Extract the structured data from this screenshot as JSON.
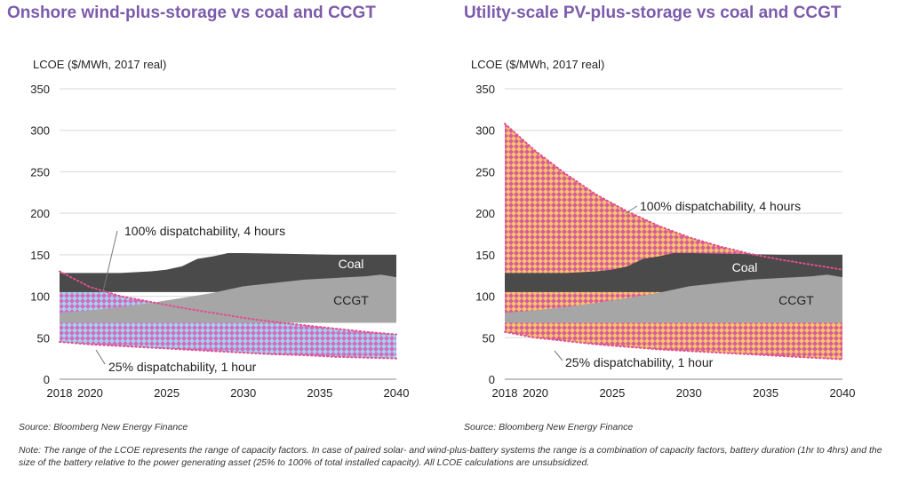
{
  "titles": {
    "left": "Onshore wind-plus-storage vs coal and CCGT",
    "right": "Utility-scale PV-plus-storage vs coal and CCGT"
  },
  "sources": {
    "left": "Source: Bloomberg New Energy Finance",
    "right": "Source: Bloomberg New Energy Finance"
  },
  "note": "Note: The range of the LCOE represents the range of capacity factors. In case of paired solar- and wind-plus-battery systems the range is a combination of capacity factors, battery duration (1hr to 4hrs) and the size of the battery relative to the power generating asset (25% to 100% of total installed capacity). All LCOE calculations are unsubsidized.",
  "colors": {
    "coal": "#4a4a4a",
    "ccgt": "#a6a6a6",
    "wind_fill_a": "#d768c0",
    "wind_fill_b": "#9fd4ec",
    "pv_fill_a": "#d65c9c",
    "pv_fill_b": "#f8c46a",
    "boundary_dots": "#e0508c",
    "grid": "#d9d9d9",
    "title": "#7c5bab"
  },
  "chart_data": [
    {
      "type": "area",
      "title": "Onshore wind-plus-storage vs coal and CCGT",
      "ylabel": "LCOE ($/MWh, 2017 real)",
      "ylim": [
        0,
        350
      ],
      "xlim": [
        2018,
        2040
      ],
      "yticks": [
        0,
        50,
        100,
        150,
        200,
        250,
        300,
        350
      ],
      "xticks": [
        {
          "v": 2018,
          "label": "2018"
        },
        {
          "v": 2020,
          "label": "2020"
        },
        {
          "v": 2025,
          "label": "2025"
        },
        {
          "v": 2030,
          "label": "2030"
        },
        {
          "v": 2035,
          "label": "2035"
        },
        {
          "v": 2040,
          "label": "2040"
        }
      ],
      "grid": true,
      "series": [
        {
          "name": "Coal",
          "x": [
            2018,
            2020,
            2022,
            2024,
            2025,
            2026,
            2027,
            2028,
            2029,
            2030,
            2033,
            2036,
            2039,
            2040
          ],
          "low": [
            105,
            105,
            105,
            105,
            105,
            105,
            105,
            105,
            105,
            105,
            105,
            105,
            105,
            105
          ],
          "high": [
            128,
            128,
            128,
            130,
            132,
            136,
            145,
            148,
            152,
            152,
            151,
            150,
            150,
            150
          ]
        },
        {
          "name": "CCGT",
          "x": [
            2018,
            2020,
            2022,
            2024,
            2026,
            2028,
            2030,
            2032,
            2034,
            2036,
            2038,
            2039,
            2040
          ],
          "low": [
            68,
            68,
            68,
            68,
            68,
            68,
            68,
            68,
            68,
            68,
            68,
            68,
            68
          ],
          "high": [
            80,
            83,
            87,
            92,
            98,
            104,
            112,
            116,
            120,
            122,
            124,
            126,
            123
          ]
        },
        {
          "name": "100% dispatchability, 4 hours",
          "x": [
            2018,
            2020,
            2022,
            2024,
            2026,
            2028,
            2030,
            2032,
            2034,
            2036,
            2038,
            2040
          ],
          "values": [
            130,
            111,
            100,
            93,
            86,
            80,
            74,
            69,
            65,
            61,
            57,
            54
          ]
        },
        {
          "name": "25% dispatchability, 1 hour",
          "x": [
            2018,
            2020,
            2022,
            2024,
            2026,
            2028,
            2030,
            2032,
            2034,
            2036,
            2038,
            2040
          ],
          "values": [
            45,
            42,
            40,
            38,
            36,
            34,
            32,
            30,
            29,
            27,
            26,
            25
          ]
        }
      ],
      "annotations": [
        {
          "text": "Coal",
          "series": "Coal"
        },
        {
          "text": "CCGT",
          "series": "CCGT"
        },
        {
          "text": "100% dispatchability, 4 hours",
          "series": "100% dispatchability, 4 hours"
        },
        {
          "text": "25% dispatchability, 1 hour",
          "series": "25% dispatchability, 1 hour"
        }
      ]
    },
    {
      "type": "area",
      "title": "Utility-scale PV-plus-storage vs coal and CCGT",
      "ylabel": "LCOE ($/MWh, 2017 real)",
      "ylim": [
        0,
        350
      ],
      "xlim": [
        2018,
        2040
      ],
      "yticks": [
        0,
        50,
        100,
        150,
        200,
        250,
        300,
        350
      ],
      "xticks": [
        {
          "v": 2018,
          "label": "2018"
        },
        {
          "v": 2020,
          "label": "2020"
        },
        {
          "v": 2025,
          "label": "2025"
        },
        {
          "v": 2030,
          "label": "2030"
        },
        {
          "v": 2035,
          "label": "2035"
        },
        {
          "v": 2040,
          "label": "2040"
        }
      ],
      "grid": true,
      "series": [
        {
          "name": "Coal",
          "x": [
            2018,
            2020,
            2022,
            2024,
            2025,
            2026,
            2027,
            2028,
            2029,
            2030,
            2033,
            2036,
            2039,
            2040
          ],
          "low": [
            105,
            105,
            105,
            105,
            105,
            105,
            105,
            105,
            105,
            105,
            105,
            105,
            105,
            105
          ],
          "high": [
            128,
            128,
            128,
            130,
            132,
            136,
            145,
            148,
            152,
            152,
            151,
            150,
            150,
            150
          ]
        },
        {
          "name": "CCGT",
          "x": [
            2018,
            2020,
            2022,
            2024,
            2026,
            2028,
            2030,
            2032,
            2034,
            2036,
            2038,
            2039,
            2040
          ],
          "low": [
            68,
            68,
            68,
            68,
            68,
            68,
            68,
            68,
            68,
            68,
            68,
            68,
            68
          ],
          "high": [
            80,
            83,
            87,
            92,
            98,
            104,
            112,
            116,
            120,
            122,
            124,
            126,
            123
          ]
        },
        {
          "name": "100% dispatchability, 4 hours",
          "x": [
            2018,
            2020,
            2022,
            2024,
            2026,
            2028,
            2030,
            2032,
            2034,
            2036,
            2038,
            2040
          ],
          "values": [
            308,
            275,
            247,
            222,
            202,
            185,
            171,
            160,
            151,
            144,
            138,
            132
          ]
        },
        {
          "name": "25% dispatchability, 1 hour",
          "x": [
            2018,
            2020,
            2022,
            2024,
            2026,
            2028,
            2030,
            2032,
            2034,
            2036,
            2038,
            2040
          ],
          "values": [
            57,
            50,
            46,
            42,
            39,
            36,
            34,
            32,
            30,
            28,
            26,
            24
          ]
        }
      ],
      "annotations": [
        {
          "text": "Coal",
          "series": "Coal"
        },
        {
          "text": "CCGT",
          "series": "CCGT"
        },
        {
          "text": "100% dispatchability, 4 hours",
          "series": "100% dispatchability, 4 hours"
        },
        {
          "text": "25% dispatchability, 1 hour",
          "series": "25% dispatchability, 1 hour"
        }
      ]
    }
  ]
}
